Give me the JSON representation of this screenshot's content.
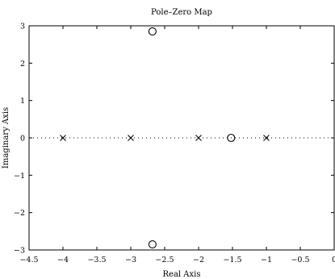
{
  "chart_data": {
    "type": "scatter",
    "title": "Pole–Zero Map",
    "xlabel": "Real Axis",
    "ylabel": "Imaginary Axis",
    "xlim": [
      -4.5,
      0
    ],
    "ylim": [
      -3,
      3
    ],
    "xticks": [
      -4.5,
      -4,
      -3.5,
      -3,
      -2.5,
      -2,
      -1.5,
      -1,
      -0.5,
      0
    ],
    "xtick_labels": [
      "−4.5",
      "−4",
      "−3.5",
      "−3",
      "−2.5",
      "−2",
      "−1.5",
      "−1",
      "−0.5",
      "0"
    ],
    "yticks": [
      -3,
      -2,
      -1,
      0,
      1,
      2,
      3
    ],
    "ytick_labels": [
      "−3",
      "−2",
      "−1",
      "0",
      "1",
      "2",
      "3"
    ],
    "grid": false,
    "reference_line": {
      "y": 0,
      "style": "dotted"
    },
    "series": [
      {
        "marker": "x",
        "points": [
          {
            "x": -4,
            "y": 0
          },
          {
            "x": -3,
            "y": 0
          },
          {
            "x": -2,
            "y": 0
          },
          {
            "x": -1,
            "y": 0
          }
        ]
      },
      {
        "marker": "o",
        "points": [
          {
            "x": -2.68,
            "y": 2.85
          },
          {
            "x": -2.68,
            "y": -2.85
          },
          {
            "x": -1.52,
            "y": 0
          }
        ]
      }
    ]
  }
}
